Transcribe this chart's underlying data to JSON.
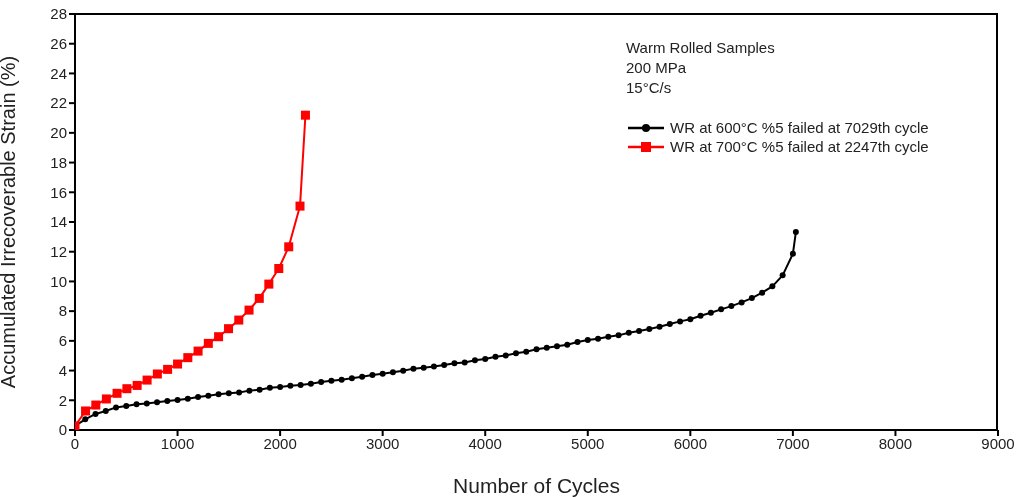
{
  "chart_data": {
    "type": "line",
    "xlabel": "Number of Cycles",
    "ylabel": "Accumulated Irrecoverable Strain (%)",
    "annotations": [
      "Warm Rolled Samples",
      "200 MPa",
      "15°C/s"
    ],
    "xlim": [
      0,
      9000
    ],
    "xticks": [
      0,
      1000,
      2000,
      3000,
      4000,
      5000,
      6000,
      7000,
      8000,
      9000
    ],
    "ylim": [
      0,
      28
    ],
    "yticks": [
      0,
      2,
      4,
      6,
      8,
      10,
      12,
      14,
      16,
      18,
      20,
      22,
      24,
      26,
      28
    ],
    "grid": false,
    "legend": "top right",
    "line_style": "solid",
    "series": [
      {
        "name": "WR at 600°C %5 failed at 7029th cycle",
        "color": "#000000",
        "marker": "circle",
        "x": [
          0,
          100,
          200,
          300,
          400,
          500,
          600,
          700,
          800,
          900,
          1000,
          1100,
          1200,
          1300,
          1400,
          1500,
          1600,
          1700,
          1800,
          1900,
          2000,
          2100,
          2200,
          2300,
          2400,
          2500,
          2600,
          2700,
          2800,
          2900,
          3000,
          3100,
          3200,
          3300,
          3400,
          3500,
          3600,
          3700,
          3800,
          3900,
          4000,
          4100,
          4200,
          4300,
          4400,
          4500,
          4600,
          4700,
          4800,
          4900,
          5000,
          5100,
          5200,
          5300,
          5400,
          5500,
          5600,
          5700,
          5800,
          5900,
          6000,
          6100,
          6200,
          6300,
          6400,
          6500,
          6600,
          6700,
          6800,
          6900,
          7000,
          7029
        ],
        "values": [
          0.27,
          0.72,
          1.08,
          1.28,
          1.52,
          1.61,
          1.73,
          1.79,
          1.86,
          1.95,
          2.02,
          2.11,
          2.22,
          2.31,
          2.4,
          2.47,
          2.53,
          2.65,
          2.71,
          2.85,
          2.89,
          2.98,
          3.03,
          3.12,
          3.23,
          3.32,
          3.39,
          3.48,
          3.59,
          3.7,
          3.79,
          3.88,
          3.99,
          4.13,
          4.19,
          4.28,
          4.37,
          4.49,
          4.55,
          4.69,
          4.78,
          4.93,
          5.02,
          5.16,
          5.27,
          5.43,
          5.54,
          5.63,
          5.74,
          5.92,
          6.06,
          6.14,
          6.28,
          6.37,
          6.55,
          6.66,
          6.8,
          6.95,
          7.13,
          7.31,
          7.45,
          7.69,
          7.89,
          8.12,
          8.34,
          8.59,
          8.88,
          9.24,
          9.67,
          10.41,
          11.86,
          13.32
        ]
      },
      {
        "name": "WR at 700°C %5 failed at 2247th cycle",
        "color": "#ff0000",
        "marker": "square",
        "x": [
          0,
          103,
          203,
          306,
          410,
          506,
          606,
          703,
          803,
          903,
          1000,
          1100,
          1200,
          1300,
          1400,
          1497,
          1597,
          1697,
          1797,
          1890,
          1987,
          2084,
          2194,
          2247
        ],
        "values": [
          0.27,
          1.28,
          1.68,
          2.09,
          2.47,
          2.78,
          3.0,
          3.36,
          3.77,
          4.08,
          4.44,
          4.87,
          5.31,
          5.83,
          6.28,
          6.82,
          7.4,
          8.07,
          8.86,
          9.82,
          10.87,
          12.33,
          15.07,
          21.19
        ]
      }
    ]
  }
}
